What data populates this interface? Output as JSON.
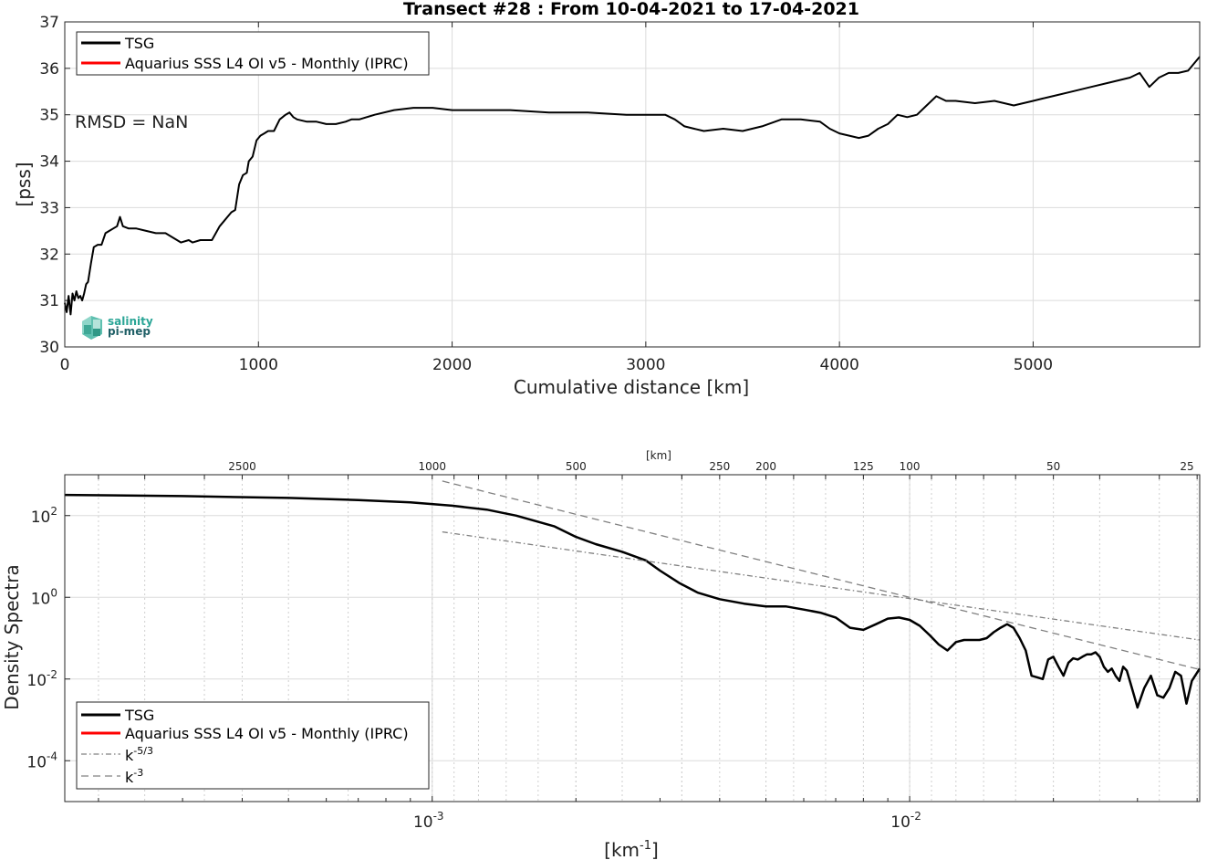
{
  "figure_title": "Transect #28 : From 10-04-2021 to 17-04-2021",
  "annotation": "RMSD = NaN",
  "logo": {
    "line1": "salinity",
    "line2": "pi-mep"
  },
  "colors": {
    "tsg": "#000000",
    "aquarius": "#ff0000",
    "ref": "#808080"
  },
  "chart_data": [
    {
      "type": "line",
      "title": "Transect #28 : From 10-04-2021 to 17-04-2021",
      "xlabel": "Cumulative distance [km]",
      "ylabel": "[pss]",
      "xlim": [
        0,
        5860
      ],
      "ylim": [
        30,
        37
      ],
      "xticks": [
        0,
        1000,
        2000,
        3000,
        4000,
        5000
      ],
      "yticks": [
        30,
        31,
        32,
        33,
        34,
        35,
        36,
        37
      ],
      "grid": true,
      "legend": {
        "placement": "top-left",
        "entries": [
          "TSG",
          "Aquarius SSS L4 OI v5 - Monthly (IPRC)"
        ]
      },
      "series": [
        {
          "name": "TSG",
          "color": "#000000",
          "x": [
            0,
            10,
            20,
            30,
            40,
            50,
            60,
            70,
            80,
            90,
            100,
            110,
            120,
            135,
            150,
            170,
            190,
            210,
            230,
            250,
            270,
            285,
            300,
            330,
            370,
            420,
            470,
            520,
            560,
            600,
            640,
            660,
            700,
            760,
            800,
            820,
            840,
            860,
            880,
            900,
            920,
            940,
            950,
            970,
            990,
            1010,
            1030,
            1050,
            1080,
            1110,
            1140,
            1160,
            1180,
            1200,
            1250,
            1300,
            1350,
            1400,
            1450,
            1480,
            1520,
            1600,
            1700,
            1800,
            1900,
            2000,
            2100,
            2200,
            2300,
            2500,
            2700,
            2900,
            3000,
            3100,
            3150,
            3200,
            3250,
            3300,
            3400,
            3500,
            3600,
            3700,
            3800,
            3900,
            3950,
            4000,
            4050,
            4100,
            4150,
            4200,
            4250,
            4300,
            4350,
            4400,
            4450,
            4500,
            4550,
            4600,
            4700,
            4800,
            4900,
            5000,
            5050,
            5100,
            5200,
            5300,
            5400,
            5500,
            5550,
            5600,
            5650,
            5700,
            5750,
            5800,
            5860
          ],
          "values": [
            30.95,
            30.75,
            31.1,
            30.7,
            31.15,
            31.0,
            31.2,
            31.05,
            31.1,
            31.0,
            31.15,
            31.35,
            31.4,
            31.8,
            32.15,
            32.2,
            32.2,
            32.45,
            32.5,
            32.55,
            32.6,
            32.8,
            32.6,
            32.55,
            32.55,
            32.5,
            32.45,
            32.45,
            32.35,
            32.25,
            32.3,
            32.25,
            32.3,
            32.3,
            32.6,
            32.7,
            32.8,
            32.9,
            32.95,
            33.5,
            33.7,
            33.75,
            34.0,
            34.1,
            34.45,
            34.55,
            34.6,
            34.65,
            34.65,
            34.9,
            35.0,
            35.05,
            34.95,
            34.9,
            34.85,
            34.85,
            34.8,
            34.8,
            34.85,
            34.9,
            34.9,
            35.0,
            35.1,
            35.15,
            35.15,
            35.1,
            35.1,
            35.1,
            35.1,
            35.05,
            35.05,
            35.0,
            35.0,
            35.0,
            34.9,
            34.75,
            34.7,
            34.65,
            34.7,
            34.65,
            34.75,
            34.9,
            34.9,
            34.85,
            34.7,
            34.6,
            34.55,
            34.5,
            34.55,
            34.7,
            34.8,
            35.0,
            34.95,
            35.0,
            35.2,
            35.4,
            35.3,
            35.3,
            35.25,
            35.3,
            35.2,
            35.3,
            35.35,
            35.4,
            35.5,
            35.6,
            35.7,
            35.8,
            35.9,
            35.6,
            35.8,
            35.9,
            35.9,
            35.95,
            36.25
          ]
        }
      ]
    },
    {
      "type": "line",
      "xlabel": "[km-1]",
      "ylabel": "Density Spectra",
      "x_scale": "log",
      "y_scale": "log",
      "xlim": [
        0.00017,
        0.0405
      ],
      "ylim": [
        1e-05,
        1000
      ],
      "xticks": [
        0.001,
        0.01
      ],
      "yticks": [
        0.0001,
        0.01,
        1,
        100
      ],
      "top_axis_label": "[km]",
      "top_ticks_km": [
        2500,
        1000,
        500,
        250,
        200,
        125,
        100,
        50,
        25
      ],
      "grid": true,
      "legend": {
        "placement": "bottom-left",
        "entries": [
          "TSG",
          "Aquarius SSS L4 OI v5 - Monthly (IPRC)",
          "k-5/3",
          "k-3"
        ]
      },
      "series": [
        {
          "name": "TSG",
          "color": "#000000",
          "x": [
            0.00017,
            0.0003,
            0.0005,
            0.0007,
            0.0009,
            0.0011,
            0.0013,
            0.0015,
            0.0018,
            0.002,
            0.0022,
            0.0025,
            0.0028,
            0.003,
            0.0033,
            0.0036,
            0.004,
            0.0045,
            0.005,
            0.0055,
            0.006,
            0.0065,
            0.007,
            0.0075,
            0.008,
            0.0085,
            0.009,
            0.0095,
            0.01,
            0.0105,
            0.011,
            0.0115,
            0.012,
            0.0125,
            0.013,
            0.0135,
            0.014,
            0.0145,
            0.015,
            0.0155,
            0.016,
            0.0165,
            0.017,
            0.0175,
            0.018,
            0.0185,
            0.019,
            0.0195,
            0.02,
            0.0205,
            0.021,
            0.0215,
            0.022,
            0.0225,
            0.023,
            0.0235,
            0.024,
            0.0245,
            0.025,
            0.0255,
            0.026,
            0.0265,
            0.027,
            0.0275,
            0.028,
            0.0285,
            0.029,
            0.0295,
            0.03,
            0.031,
            0.032,
            0.033,
            0.034,
            0.035,
            0.036,
            0.037,
            0.038,
            0.039,
            0.0405
          ],
          "values": [
            320,
            300,
            270,
            240,
            210,
            175,
            140,
            100,
            55,
            30,
            20,
            13,
            8,
            4.5,
            2.2,
            1.3,
            0.9,
            0.7,
            0.6,
            0.6,
            0.5,
            0.42,
            0.32,
            0.18,
            0.16,
            0.22,
            0.3,
            0.32,
            0.28,
            0.2,
            0.12,
            0.07,
            0.05,
            0.08,
            0.09,
            0.09,
            0.09,
            0.1,
            0.14,
            0.18,
            0.22,
            0.18,
            0.1,
            0.05,
            0.012,
            0.011,
            0.01,
            0.03,
            0.035,
            0.02,
            0.012,
            0.025,
            0.032,
            0.03,
            0.035,
            0.04,
            0.04,
            0.045,
            0.035,
            0.02,
            0.015,
            0.018,
            0.012,
            0.009,
            0.02,
            0.016,
            0.008,
            0.004,
            0.002,
            0.006,
            0.012,
            0.004,
            0.0035,
            0.006,
            0.015,
            0.012,
            0.0025,
            0.009,
            0.018
          ]
        },
        {
          "name": "k-5/3",
          "color": "#808080",
          "dash": "dashdot",
          "x": [
            0.00105,
            0.0405
          ],
          "values": [
            40,
            0.09
          ]
        },
        {
          "name": "k-3",
          "color": "#808080",
          "dash": "dash",
          "x": [
            0.00105,
            0.0405
          ],
          "values": [
            700,
            0.017
          ]
        }
      ]
    }
  ]
}
